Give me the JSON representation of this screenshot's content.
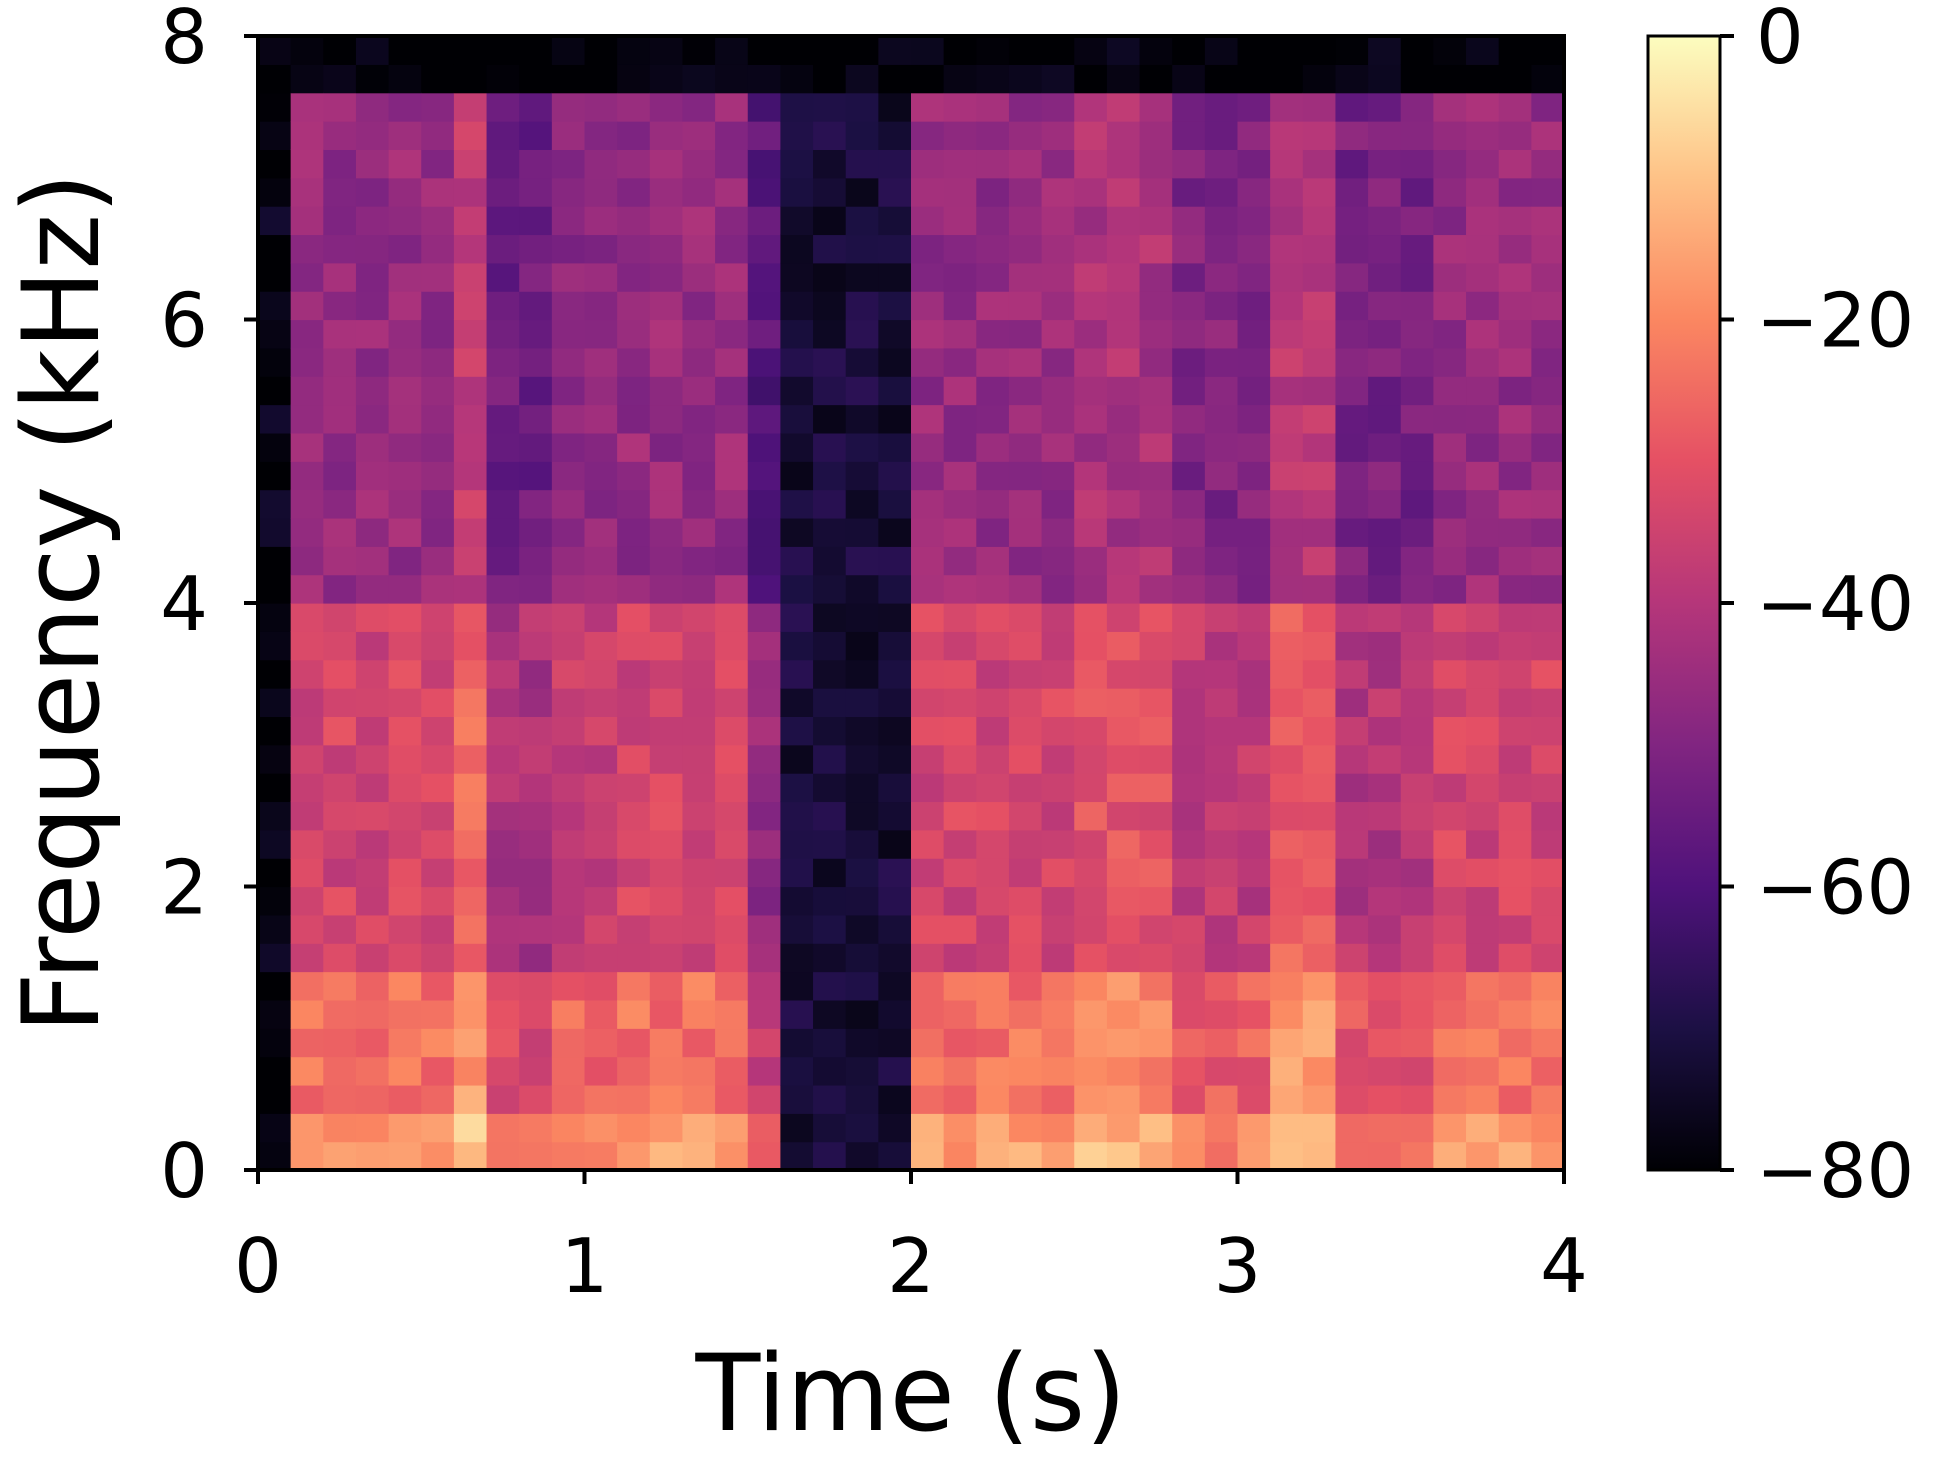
{
  "chart_data": {
    "type": "heatmap",
    "title": "",
    "xlabel": "Time (s)",
    "ylabel": "Frequency (kHz)",
    "xlim": [
      0,
      4
    ],
    "ylim": [
      0,
      8
    ],
    "x_ticks": [
      0,
      1,
      2,
      3,
      4
    ],
    "x_tick_labels": [
      "0",
      "1",
      "2",
      "3",
      "4"
    ],
    "y_ticks": [
      0,
      2,
      4,
      6,
      8
    ],
    "y_tick_labels": [
      "0",
      "2",
      "4",
      "6",
      "8"
    ],
    "colorbar": {
      "colormap": "magma",
      "range": [
        -80,
        0
      ],
      "ticks": [
        0,
        -20,
        -40,
        -60,
        -80
      ],
      "tick_labels": [
        "0",
        "−20",
        "−40",
        "−60",
        "−80"
      ]
    },
    "time_bins": 40,
    "freq_bins": 40,
    "segments": [
      {
        "start": 0.0,
        "end": 0.15,
        "level": -78
      },
      {
        "start": 0.15,
        "end": 0.6,
        "level": -30
      },
      {
        "start": 0.6,
        "end": 0.75,
        "level": -22
      },
      {
        "start": 0.75,
        "end": 0.95,
        "level": -38
      },
      {
        "start": 0.95,
        "end": 1.1,
        "level": -32
      },
      {
        "start": 1.1,
        "end": 1.55,
        "level": -30
      },
      {
        "start": 1.55,
        "end": 1.65,
        "level": -42
      },
      {
        "start": 1.65,
        "end": 2.05,
        "level": -72
      },
      {
        "start": 2.05,
        "end": 2.55,
        "level": -30
      },
      {
        "start": 2.55,
        "end": 2.85,
        "level": -26
      },
      {
        "start": 2.85,
        "end": 3.15,
        "level": -34
      },
      {
        "start": 3.15,
        "end": 3.3,
        "level": -24
      },
      {
        "start": 3.3,
        "end": 3.65,
        "level": -36
      },
      {
        "start": 3.65,
        "end": 4.0,
        "level": -30
      }
    ],
    "colors": {
      "background": "#ffffff",
      "axes": "#000000"
    }
  }
}
